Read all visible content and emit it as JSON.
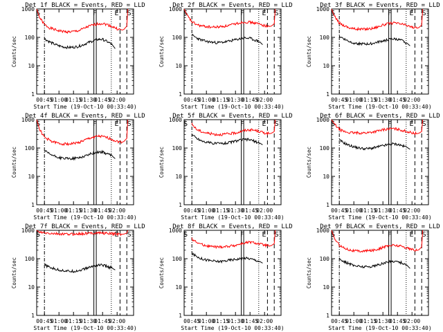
{
  "chart_data": [
    {
      "type": "line",
      "title": "Det 1f BLACK = Events, RED = LLD",
      "xlabel": "Start Time (19-Oct-10 00:33:40)",
      "ylabel": "Counts/sec",
      "yscale": "log",
      "ylim": [
        1,
        1000
      ],
      "xlim_min": [
        37,
        137
      ],
      "x_ticks": [
        "00:45",
        "01:00",
        "01:15",
        "01:30",
        "01:45",
        "02:00"
      ],
      "y_ticks": [
        "1",
        "10",
        "100",
        "1000"
      ],
      "markers": [
        "S",
        "F",
        "E",
        "S"
      ],
      "series": [
        {
          "name": "LLD",
          "color": "#ff0000",
          "x": [
            37,
            40,
            45,
            50,
            55,
            60,
            65,
            70,
            75,
            80,
            85,
            90,
            95,
            100,
            105,
            110,
            115,
            120,
            125,
            127,
            130,
            131
          ],
          "values": [
            1000,
            500,
            280,
            220,
            190,
            170,
            160,
            155,
            160,
            170,
            200,
            240,
            270,
            300,
            310,
            280,
            240,
            200,
            180,
            190,
            250,
            1000
          ]
        },
        {
          "name": "Events",
          "color": "#000000",
          "x": [
            45,
            50,
            55,
            60,
            65,
            70,
            75,
            80,
            85,
            90,
            95,
            100,
            105,
            110,
            115,
            118
          ],
          "values": [
            90,
            70,
            58,
            50,
            46,
            44,
            45,
            48,
            55,
            65,
            75,
            85,
            85,
            70,
            55,
            40
          ]
        }
      ]
    },
    {
      "type": "line",
      "title": "Det 2f BLACK = Events, RED = LLD",
      "xlabel": "Start Time (19-Oct-10 00:33:40)",
      "ylabel": "Counts/sec",
      "yscale": "log",
      "ylim": [
        1,
        1000
      ],
      "xlim_min": [
        37,
        137
      ],
      "x_ticks": [
        "00:45",
        "01:00",
        "01:15",
        "01:30",
        "01:45",
        "02:00"
      ],
      "y_ticks": [
        "1",
        "10",
        "100",
        "1000"
      ],
      "markers": [
        "S",
        "F",
        "E",
        "S"
      ],
      "series": [
        {
          "name": "LLD",
          "color": "#ff0000",
          "x": [
            37,
            40,
            45,
            50,
            55,
            60,
            65,
            70,
            75,
            80,
            85,
            90,
            95,
            100,
            105,
            110,
            115,
            120,
            125,
            127,
            130,
            131
          ],
          "values": [
            1000,
            600,
            350,
            280,
            250,
            240,
            230,
            230,
            240,
            250,
            270,
            300,
            330,
            350,
            340,
            320,
            290,
            260,
            240,
            250,
            300,
            1000
          ]
        },
        {
          "name": "Events",
          "color": "#000000",
          "x": [
            45,
            50,
            55,
            60,
            65,
            70,
            75,
            80,
            85,
            90,
            95,
            100,
            105,
            110,
            115,
            118
          ],
          "values": [
            120,
            95,
            80,
            72,
            68,
            65,
            66,
            70,
            75,
            82,
            90,
            95,
            92,
            80,
            70,
            55
          ]
        }
      ]
    },
    {
      "type": "line",
      "title": "Det 3f BLACK = Events, RED = LLD",
      "xlabel": "Start Time (19-Oct-10 00:33:40)",
      "ylabel": "Counts/sec",
      "yscale": "log",
      "ylim": [
        1,
        1000
      ],
      "xlim_min": [
        37,
        137
      ],
      "x_ticks": [
        "00:45",
        "01:00",
        "01:15",
        "01:30",
        "01:45",
        "02:00"
      ],
      "y_ticks": [
        "1",
        "10",
        "100",
        "1000"
      ],
      "markers": [
        "S",
        "F",
        "E",
        "S"
      ],
      "series": [
        {
          "name": "LLD",
          "color": "#ff0000",
          "x": [
            37,
            40,
            45,
            50,
            55,
            60,
            65,
            70,
            75,
            80,
            85,
            90,
            95,
            100,
            105,
            110,
            115,
            120,
            125,
            127,
            130,
            131
          ],
          "values": [
            1000,
            550,
            320,
            260,
            220,
            200,
            195,
            195,
            200,
            210,
            240,
            270,
            300,
            320,
            310,
            290,
            260,
            230,
            210,
            220,
            270,
            1000
          ]
        },
        {
          "name": "Events",
          "color": "#000000",
          "x": [
            45,
            50,
            55,
            60,
            65,
            70,
            75,
            80,
            85,
            90,
            95,
            100,
            105,
            110,
            115,
            118
          ],
          "values": [
            110,
            88,
            72,
            64,
            60,
            58,
            58,
            62,
            68,
            75,
            82,
            88,
            85,
            75,
            62,
            50
          ]
        }
      ]
    },
    {
      "type": "line",
      "title": "Det 4f BLACK = Events, RED = LLD",
      "xlabel": "Start Time (19-Oct-10 00:33:40)",
      "ylabel": "Counts/sec",
      "yscale": "log",
      "ylim": [
        1,
        1000
      ],
      "xlim_min": [
        37,
        137
      ],
      "x_ticks": [
        "00:45",
        "01:00",
        "01:15",
        "01:30",
        "01:45",
        "02:00"
      ],
      "y_ticks": [
        "1",
        "10",
        "100",
        "1000"
      ],
      "markers": [
        "S",
        "F",
        "E",
        "S"
      ],
      "series": [
        {
          "name": "LLD",
          "color": "#ff0000",
          "x": [
            37,
            40,
            45,
            50,
            55,
            60,
            65,
            70,
            75,
            80,
            85,
            90,
            95,
            100,
            105,
            110,
            115,
            120,
            125,
            127,
            130,
            131
          ],
          "values": [
            1000,
            450,
            240,
            190,
            160,
            145,
            140,
            140,
            145,
            155,
            180,
            210,
            240,
            260,
            250,
            230,
            200,
            170,
            160,
            170,
            220,
            1000
          ]
        },
        {
          "name": "Events",
          "color": "#000000",
          "x": [
            45,
            50,
            55,
            60,
            65,
            70,
            75,
            80,
            85,
            90,
            95,
            100,
            105,
            110,
            115,
            118
          ],
          "values": [
            80,
            62,
            52,
            46,
            43,
            42,
            43,
            45,
            50,
            58,
            66,
            72,
            72,
            62,
            52,
            42
          ]
        }
      ]
    },
    {
      "type": "line",
      "title": "Det 5f BLACK = Events, RED = LLD",
      "xlabel": "Start Time (19-Oct-10 00:33:40)",
      "ylabel": "Counts/sec",
      "yscale": "log",
      "ylim": [
        1,
        1000
      ],
      "xlim_min": [
        37,
        137
      ],
      "x_ticks": [
        "00:45",
        "01:00",
        "01:15",
        "01:30",
        "01:45",
        "02:00"
      ],
      "y_ticks": [
        "1",
        "10",
        "100",
        "1000"
      ],
      "markers": [
        "S",
        "F",
        "E",
        "S"
      ],
      "series": [
        {
          "name": "LLD",
          "color": "#ff0000",
          "x": [
            45,
            50,
            55,
            60,
            65,
            70,
            75,
            80,
            85,
            90,
            95,
            100,
            105,
            110,
            115,
            120,
            125,
            127,
            130,
            131
          ],
          "values": [
            700,
            450,
            380,
            340,
            320,
            300,
            300,
            310,
            320,
            340,
            380,
            420,
            440,
            420,
            380,
            340,
            320,
            330,
            380,
            1000
          ]
        },
        {
          "name": "Events",
          "color": "#000000",
          "x": [
            45,
            50,
            55,
            60,
            65,
            70,
            75,
            80,
            85,
            90,
            95,
            100,
            105,
            110,
            115,
            118
          ],
          "values": [
            300,
            220,
            180,
            160,
            150,
            145,
            145,
            150,
            160,
            175,
            190,
            200,
            195,
            170,
            150,
            130
          ]
        }
      ]
    },
    {
      "type": "line",
      "title": "Det 6f BLACK = Events, RED = LLD",
      "xlabel": "Start Time (19-Oct-10 00:33:40)",
      "ylabel": "Counts/sec",
      "yscale": "log",
      "ylim": [
        1,
        1000
      ],
      "xlim_min": [
        37,
        137
      ],
      "x_ticks": [
        "00:45",
        "01:00",
        "01:15",
        "01:30",
        "01:45",
        "02:00"
      ],
      "y_ticks": [
        "1",
        "10",
        "100",
        "1000"
      ],
      "markers": [
        "S",
        "F",
        "E",
        "S"
      ],
      "series": [
        {
          "name": "LLD",
          "color": "#ff0000",
          "x": [
            37,
            40,
            45,
            50,
            55,
            60,
            65,
            70,
            75,
            80,
            85,
            90,
            95,
            100,
            105,
            110,
            115,
            120,
            125,
            127,
            130,
            131
          ],
          "values": [
            1000,
            700,
            450,
            380,
            350,
            340,
            340,
            340,
            350,
            370,
            400,
            440,
            470,
            480,
            460,
            420,
            380,
            340,
            320,
            330,
            380,
            1000
          ]
        },
        {
          "name": "Events",
          "color": "#000000",
          "x": [
            45,
            50,
            55,
            60,
            65,
            70,
            75,
            80,
            85,
            90,
            95,
            100,
            105,
            110,
            115,
            118
          ],
          "values": [
            190,
            150,
            125,
            110,
            100,
            95,
            95,
            100,
            110,
            120,
            130,
            140,
            135,
            120,
            105,
            90
          ]
        }
      ]
    },
    {
      "type": "line",
      "title": "Det 7f BLACK = Events, RED = LLD",
      "xlabel": "Start Time (19-Oct-10 00:33:40)",
      "ylabel": "Counts/sec",
      "yscale": "log",
      "ylim": [
        1,
        1000
      ],
      "xlim_min": [
        37,
        137
      ],
      "x_ticks": [
        "00:45",
        "01:00",
        "01:15",
        "01:30",
        "01:45",
        "02:00"
      ],
      "y_ticks": [
        "1",
        "10",
        "100",
        "1000"
      ],
      "markers": [
        "S",
        "F",
        "E",
        "S"
      ],
      "series": [
        {
          "name": "LLD",
          "color": "#ff0000",
          "x": [
            37,
            40,
            45,
            50,
            55,
            60,
            65,
            70,
            75,
            80,
            85,
            90,
            95,
            100,
            105,
            110,
            115,
            120,
            125,
            127,
            130,
            131
          ],
          "values": [
            1000,
            850,
            800,
            780,
            760,
            740,
            730,
            730,
            740,
            750,
            760,
            780,
            800,
            820,
            800,
            780,
            760,
            740,
            720,
            740,
            800,
            1000
          ]
        },
        {
          "name": "Events",
          "color": "#000000",
          "x": [
            45,
            50,
            55,
            60,
            65,
            70,
            75,
            80,
            85,
            90,
            95,
            100,
            105,
            110,
            115,
            118
          ],
          "values": [
            60,
            50,
            44,
            40,
            38,
            36,
            36,
            38,
            42,
            48,
            54,
            60,
            60,
            52,
            46,
            40
          ]
        }
      ]
    },
    {
      "type": "line",
      "title": "Det 8f BLACK = Events, RED = LLD",
      "xlabel": "Start Time (19-Oct-10 00:33:40)",
      "ylabel": "Counts/sec",
      "yscale": "log",
      "ylim": [
        1,
        1000
      ],
      "xlim_min": [
        37,
        137
      ],
      "x_ticks": [
        "00:45",
        "01:00",
        "01:15",
        "01:30",
        "01:45",
        "02:00"
      ],
      "y_ticks": [
        "1",
        "10",
        "100",
        "1000"
      ],
      "markers": [
        "S",
        "F",
        "E",
        "S"
      ],
      "series": [
        {
          "name": "LLD",
          "color": "#ff0000",
          "x": [
            45,
            50,
            55,
            60,
            65,
            70,
            75,
            80,
            85,
            90,
            95,
            100,
            105,
            110,
            115,
            120,
            125,
            127,
            130,
            131
          ],
          "values": [
            500,
            380,
            320,
            290,
            270,
            260,
            260,
            270,
            280,
            300,
            330,
            360,
            380,
            360,
            330,
            300,
            280,
            290,
            340,
            1000
          ]
        },
        {
          "name": "Events",
          "color": "#000000",
          "x": [
            45,
            50,
            55,
            60,
            65,
            70,
            75,
            80,
            85,
            90,
            95,
            100,
            105,
            110,
            115,
            118
          ],
          "values": [
            150,
            120,
            100,
            90,
            85,
            80,
            80,
            85,
            90,
            95,
            100,
            105,
            100,
            90,
            80,
            70
          ]
        }
      ]
    },
    {
      "type": "line",
      "title": "Det 9f BLACK = Events, RED = LLD",
      "xlabel": "Start Time (19-Oct-10 00:33:40)",
      "ylabel": "Counts/sec",
      "yscale": "log",
      "ylim": [
        1,
        1000
      ],
      "xlim_min": [
        37,
        137
      ],
      "x_ticks": [
        "00:45",
        "01:00",
        "01:15",
        "01:30",
        "01:45",
        "02:00"
      ],
      "y_ticks": [
        "1",
        "10",
        "100",
        "1000"
      ],
      "markers": [
        "S",
        "F",
        "E",
        "S"
      ],
      "series": [
        {
          "name": "LLD",
          "color": "#ff0000",
          "x": [
            37,
            40,
            45,
            50,
            55,
            60,
            65,
            70,
            75,
            80,
            85,
            90,
            95,
            100,
            105,
            110,
            115,
            120,
            125,
            127,
            130,
            131
          ],
          "values": [
            1000,
            520,
            300,
            240,
            210,
            190,
            185,
            185,
            190,
            200,
            220,
            250,
            280,
            300,
            290,
            270,
            240,
            210,
            195,
            205,
            260,
            1000
          ]
        },
        {
          "name": "Events",
          "color": "#000000",
          "x": [
            45,
            50,
            55,
            60,
            65,
            70,
            75,
            80,
            85,
            90,
            95,
            100,
            105,
            110,
            115,
            118
          ],
          "values": [
            100,
            80,
            66,
            58,
            54,
            52,
            52,
            55,
            60,
            68,
            76,
            82,
            80,
            70,
            58,
            45
          ]
        }
      ]
    }
  ]
}
